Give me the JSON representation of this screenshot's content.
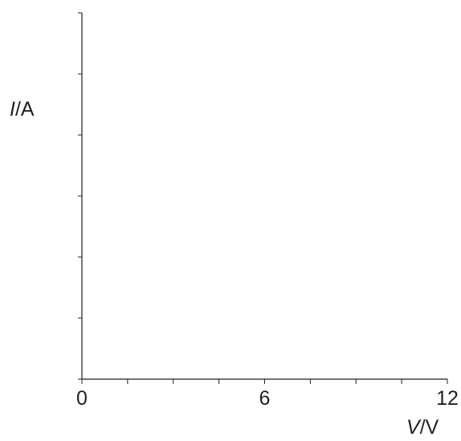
{
  "chart_data": {
    "type": "line",
    "title": "",
    "series": [],
    "x": {
      "label_symbol": "V",
      "label_unit": "V",
      "range": [
        0,
        12
      ],
      "major_ticks": [
        0,
        6,
        12
      ],
      "tick_labels": [
        "0",
        "6",
        "12"
      ],
      "minor_tick_step": 1.5
    },
    "y": {
      "label_symbol": "I",
      "label_unit": "A",
      "tick_count": 6,
      "tick_labels": []
    },
    "grid": false,
    "legend": "none"
  }
}
